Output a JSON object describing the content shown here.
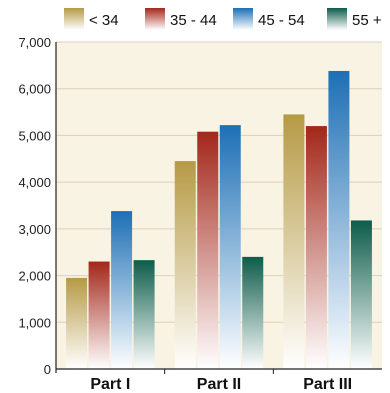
{
  "chart_data": {
    "type": "bar",
    "title": "",
    "xlabel": "",
    "ylabel": "",
    "categories": [
      "Part I",
      "Part II",
      "Part III"
    ],
    "series": [
      {
        "name": "< 34",
        "values": [
          1950,
          4450,
          5450
        ],
        "color": "#b59a45"
      },
      {
        "name": "35 - 44",
        "values": [
          2300,
          5080,
          5200
        ],
        "color": "#a3271a"
      },
      {
        "name": "45 - 54",
        "values": [
          3380,
          5220,
          6380
        ],
        "color": "#1d6fb5"
      },
      {
        "name": "55 +",
        "values": [
          2330,
          2400,
          3180
        ],
        "color": "#0d5c4a"
      }
    ],
    "ylim": [
      0,
      7000
    ],
    "yticks": [
      "0",
      "1,000",
      "2,000",
      "3,000",
      "4,000",
      "5,000",
      "6,000",
      "7,000"
    ],
    "grid": true,
    "legend_position": "top",
    "background_color": "#f8f3e2"
  }
}
